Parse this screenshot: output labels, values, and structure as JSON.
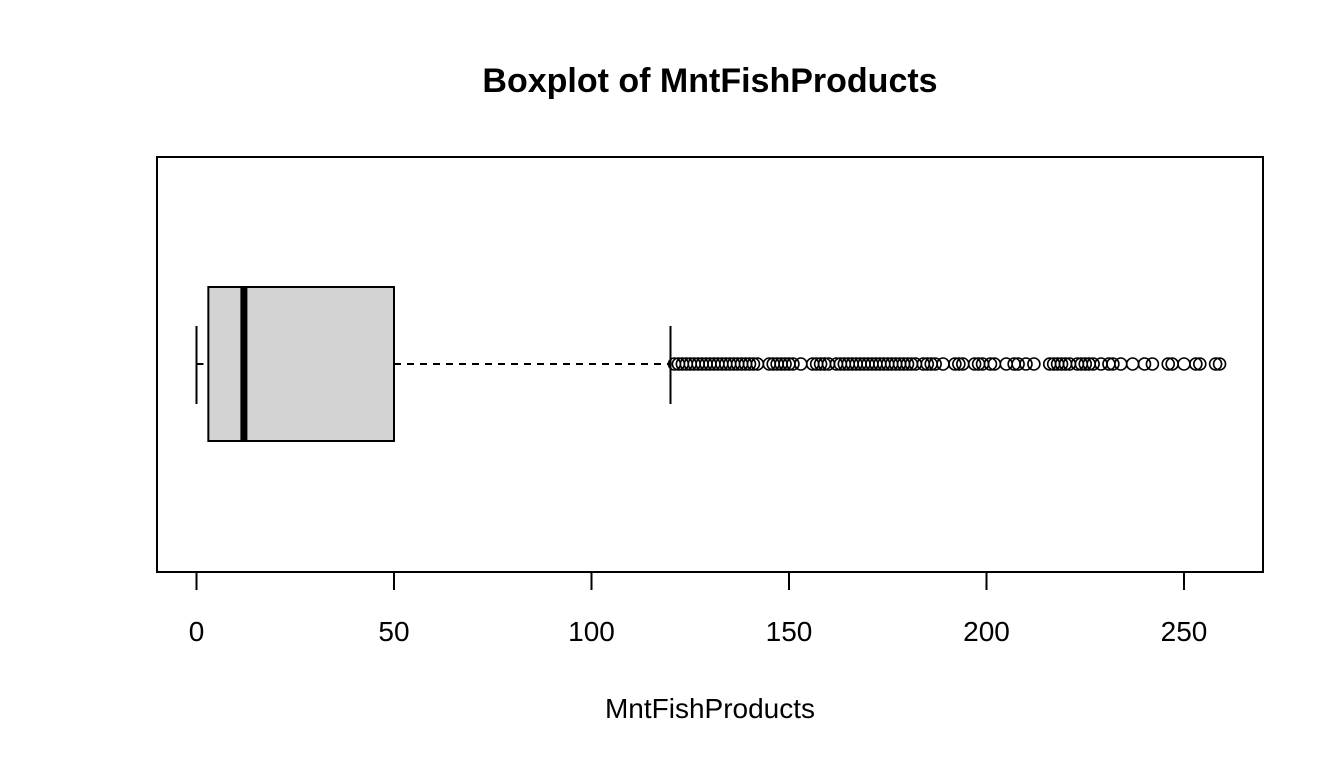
{
  "chart_data": {
    "type": "boxplot",
    "orientation": "horizontal",
    "title": "Boxplot of MntFishProducts",
    "xlabel": "MntFishProducts",
    "ylabel": "",
    "xlim": [
      -10,
      270
    ],
    "ticks": [
      0,
      50,
      100,
      150,
      200,
      250
    ],
    "tick_labels": [
      "0",
      "50",
      "100",
      "150",
      "200",
      "250"
    ],
    "box": {
      "whisker_low": 0,
      "q1": 3,
      "median": 12,
      "q3": 50,
      "whisker_high": 120
    },
    "outliers": [
      121,
      122,
      123,
      124,
      125,
      126,
      127,
      128,
      129,
      130,
      131,
      132,
      133,
      134,
      135,
      136,
      137,
      138,
      139,
      140,
      141,
      142,
      145,
      146,
      147,
      148,
      149,
      150,
      151,
      153,
      156,
      157,
      158,
      159,
      160,
      162,
      163,
      164,
      165,
      166,
      167,
      168,
      169,
      170,
      171,
      172,
      173,
      174,
      175,
      176,
      177,
      178,
      179,
      180,
      181,
      182,
      184,
      185,
      186,
      187,
      189,
      192,
      193,
      194,
      197,
      198,
      199,
      201,
      202,
      205,
      207,
      208,
      210,
      212,
      216,
      217,
      218,
      219,
      220,
      221,
      223,
      224,
      225,
      226,
      227,
      229,
      231,
      232,
      234,
      237,
      240,
      242,
      246,
      247,
      250,
      253,
      254,
      258,
      259
    ],
    "colors": {
      "box_fill": "#d3d3d3",
      "stroke": "#000000"
    }
  }
}
